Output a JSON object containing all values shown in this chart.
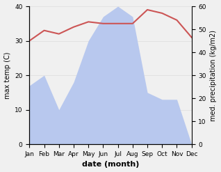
{
  "months": [
    "Jan",
    "Feb",
    "Mar",
    "Apr",
    "May",
    "Jun",
    "Jul",
    "Aug",
    "Sep",
    "Oct",
    "Nov",
    "Dec"
  ],
  "temperature": [
    30,
    33,
    32,
    34,
    35.5,
    35,
    35,
    35,
    39,
    38,
    36,
    31
  ],
  "precipitation": [
    17,
    20,
    10,
    18,
    30,
    37,
    40,
    37,
    15,
    13,
    13,
    0
  ],
  "temp_color": "#cc5555",
  "precip_color": "#b8c8ee",
  "title": "",
  "xlabel": "date (month)",
  "ylabel_left": "max temp (C)",
  "ylabel_right": "med. precipitation (kg/m2)",
  "ylim_left": [
    0,
    40
  ],
  "ylim_right": [
    0,
    60
  ],
  "yticks_left": [
    0,
    10,
    20,
    30,
    40
  ],
  "yticks_right": [
    0,
    10,
    20,
    30,
    40,
    50,
    60
  ],
  "background_color": "#f0f0f0",
  "grid_color": "#dddddd"
}
